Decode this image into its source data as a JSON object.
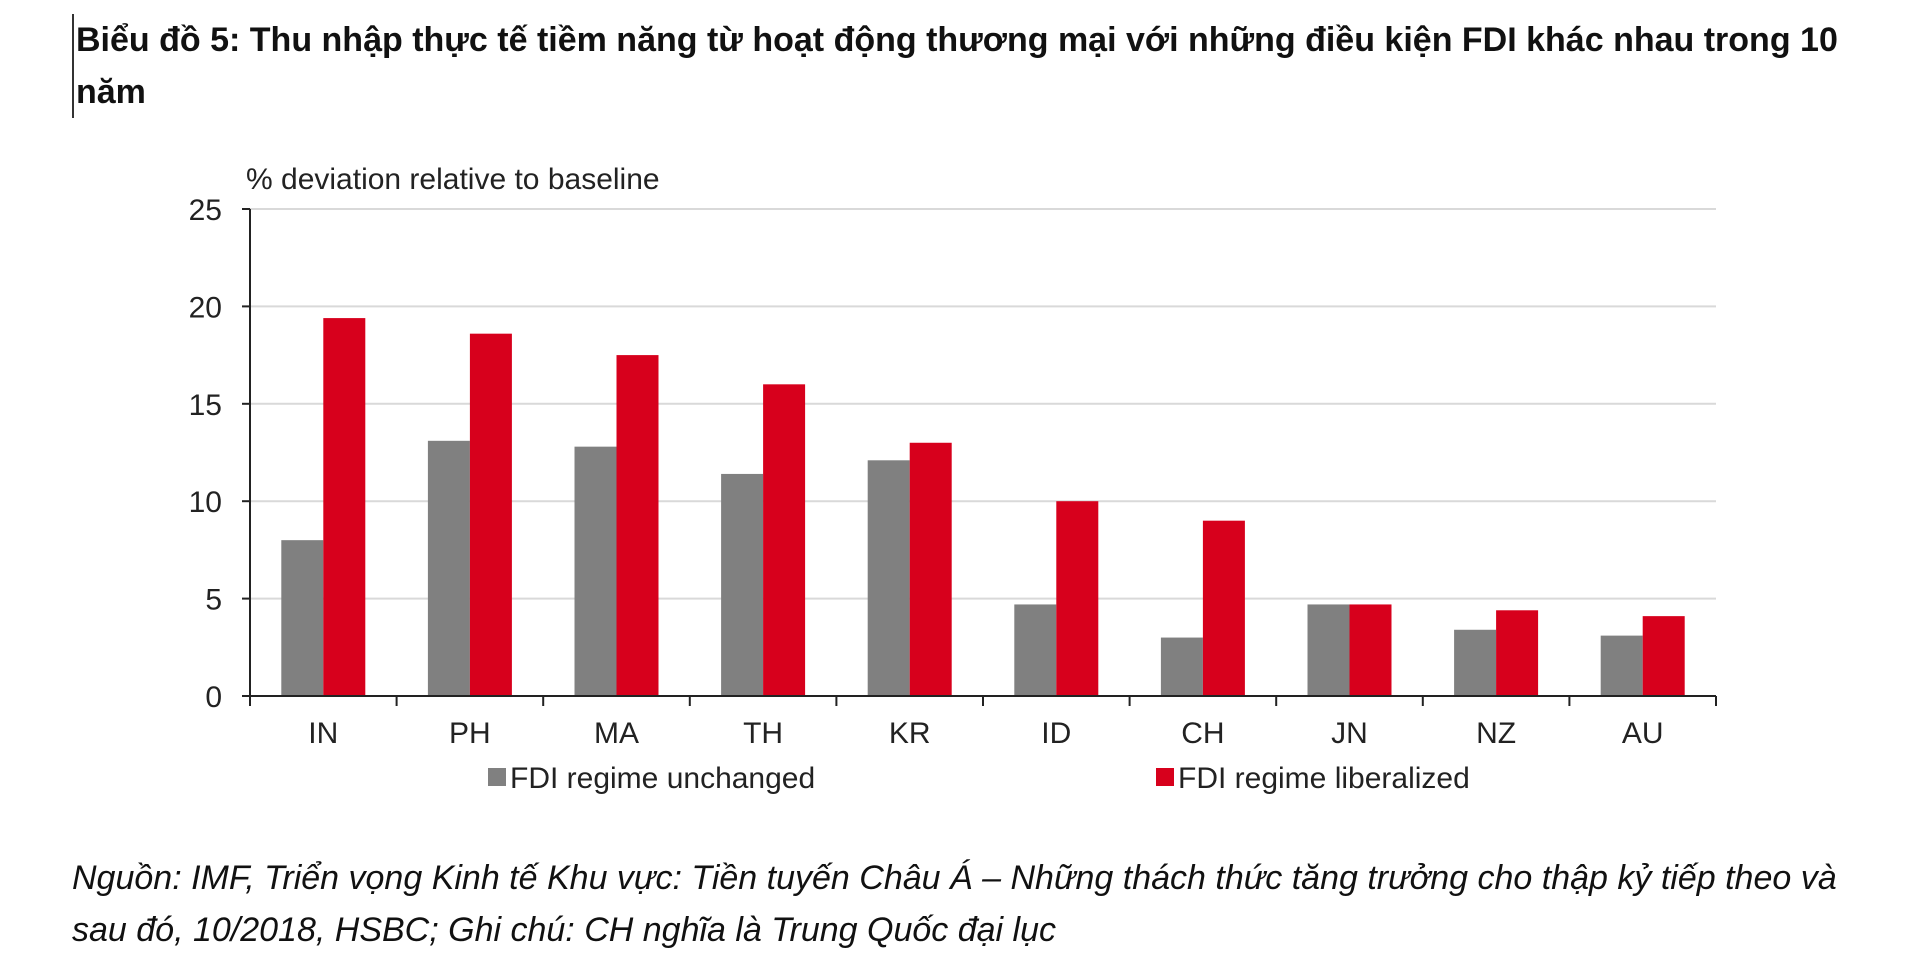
{
  "title": "Biểu đồ 5: Thu nhập thực tế tiềm năng từ hoạt động thương mại với những điều kiện FDI khác nhau trong 10 năm",
  "source_note": "Nguồn: IMF, Triển vọng Kinh tế Khu vực: Tiền tuyến Châu Á – Những thách thức tăng trưởng cho thập kỷ tiếp theo và sau đó, 10/2018, HSBC; Ghi chú: CH nghĩa là Trung Quốc đại lục",
  "colors": {
    "unchanged": "#808080",
    "liberalized": "#d7001c",
    "grid": "#d9d9d9",
    "axis": "#222222"
  },
  "chart_data": {
    "type": "bar",
    "title": "",
    "ylabel": "% deviation relative to baseline",
    "xlabel": "",
    "ylim": [
      0,
      25
    ],
    "yticks": [
      0,
      5,
      10,
      15,
      20,
      25
    ],
    "grid": true,
    "legend_position": "bottom",
    "categories": [
      "IN",
      "PH",
      "MA",
      "TH",
      "KR",
      "ID",
      "CH",
      "JN",
      "NZ",
      "AU"
    ],
    "series": [
      {
        "name": "FDI regime unchanged",
        "values": [
          8.0,
          13.1,
          12.8,
          11.4,
          12.1,
          4.7,
          3.0,
          4.7,
          3.4,
          3.1
        ]
      },
      {
        "name": "FDI regime liberalized",
        "values": [
          19.4,
          18.6,
          17.5,
          16.0,
          13.0,
          10.0,
          9.0,
          4.7,
          4.4,
          4.1
        ]
      }
    ]
  }
}
